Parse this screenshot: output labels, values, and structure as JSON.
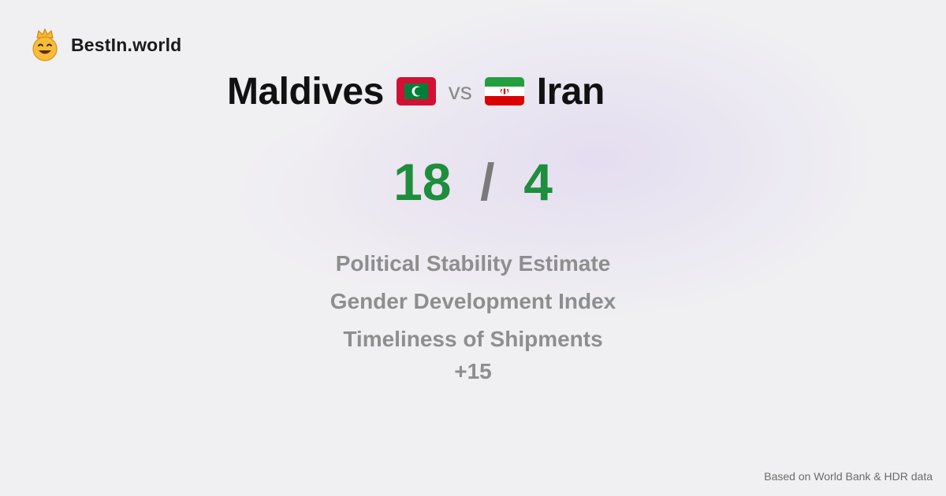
{
  "brand": {
    "name": "BestIn.world",
    "icon": "crowned-smiley-icon"
  },
  "comparison": {
    "left_country": "Maldives",
    "left_flag": "maldives-flag-icon",
    "vs_label": "vs",
    "right_country": "Iran",
    "right_flag": "iran-flag-icon"
  },
  "score": {
    "left": "18",
    "separator": "/",
    "right": "4"
  },
  "metrics": [
    "Political Stability Estimate",
    "Gender Development Index",
    "Timeliness of Shipments"
  ],
  "more_label": "+15",
  "footer": {
    "source": "Based on World Bank & HDR data"
  },
  "colors": {
    "score_green": "#1f8d3e",
    "muted_gray": "#8e8e8e",
    "brand_yellow": "#f5b82e"
  }
}
